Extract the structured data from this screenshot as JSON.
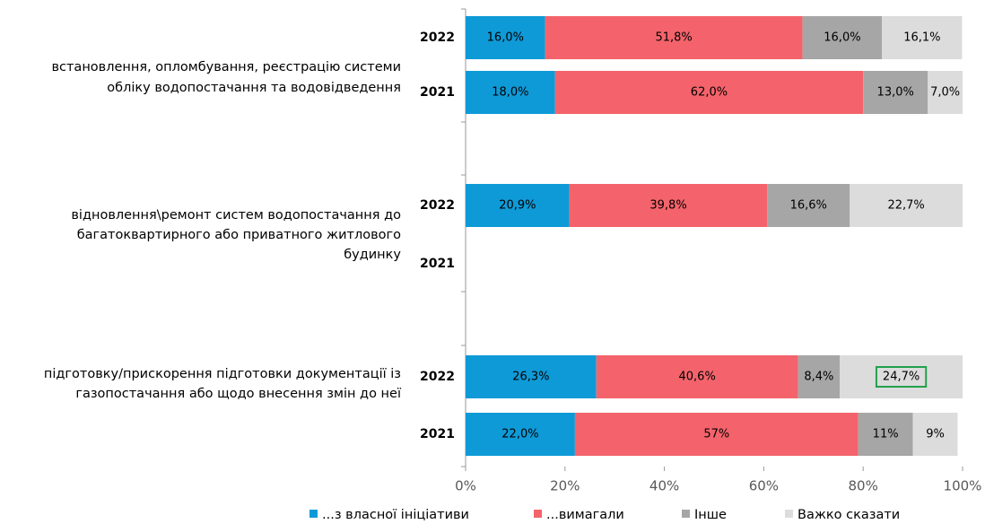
{
  "chart_data": {
    "type": "stacked-bar-horizontal",
    "group_labels": [
      [
        "встановлення, опломбування, реєстрацію системи",
        "обліку водопостачання та водовідведення"
      ],
      [
        "відновлення\\ремонт систем водопостачання до",
        "багатоквартирного або приватного житлового",
        "будинку"
      ],
      [
        "підготовку/прискорення підготовки документації із",
        "газопостачання або щодо внесення змін до неї"
      ]
    ],
    "categories": [
      "2022",
      "2021",
      "2022",
      "2021",
      "2022",
      "2021"
    ],
    "series": [
      {
        "name": "...з власної ініціативи",
        "color": "#0e9ad7",
        "values": [
          16.0,
          18.0,
          20.9,
          null,
          26.3,
          22.0
        ],
        "value_labels": [
          "16,0%",
          "18,0%",
          "20,9%",
          null,
          "26,3%",
          "22,0%"
        ]
      },
      {
        "name": "...вимагали",
        "color": "#f4636b",
        "values": [
          51.8,
          62.0,
          39.8,
          null,
          40.6,
          57
        ],
        "value_labels": [
          "51,8%",
          "62,0%",
          "39,8%",
          null,
          "40,6%",
          "57%"
        ]
      },
      {
        "name": "Інше",
        "color": "#a6a6a6",
        "values": [
          16.0,
          13.0,
          16.6,
          null,
          8.4,
          11
        ],
        "value_labels": [
          "16,0%",
          "13,0%",
          "16,6%",
          null,
          "8,4%",
          "11%"
        ]
      },
      {
        "name": "Важко сказати",
        "color": "#dcdcdc",
        "values": [
          16.1,
          7.0,
          22.7,
          null,
          24.7,
          9
        ],
        "value_labels": [
          "16,1%",
          "7,0%",
          "22,7%",
          null,
          "24,7%",
          "9%"
        ]
      }
    ],
    "xlim": [
      0,
      100
    ],
    "xticks": [
      {
        "value": 0,
        "label": "0%"
      },
      {
        "value": 20,
        "label": "20%"
      },
      {
        "value": 40,
        "label": "40%"
      },
      {
        "value": 60,
        "label": "60%"
      },
      {
        "value": 80,
        "label": "80%"
      },
      {
        "value": 100,
        "label": "100%"
      }
    ],
    "highlight": {
      "series": 3,
      "index": 4,
      "color": "#22a04b"
    },
    "legend": "bottom"
  }
}
